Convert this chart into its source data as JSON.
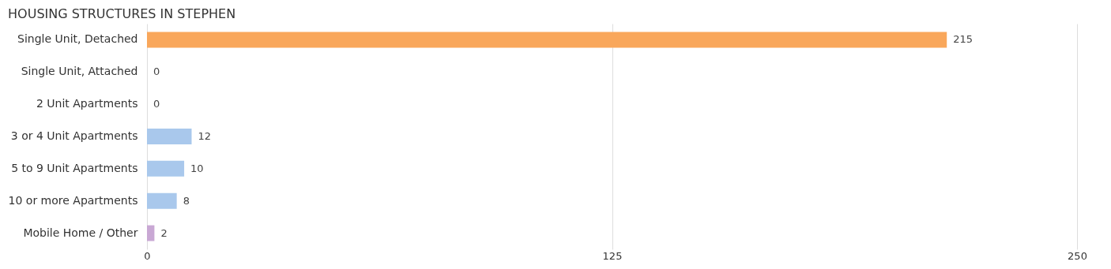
{
  "chart_data": {
    "type": "bar",
    "orientation": "horizontal",
    "title": "HOUSING STRUCTURES IN STEPHEN",
    "categories": [
      "Single Unit, Detached",
      "Single Unit, Attached",
      "2 Unit Apartments",
      "3 or 4 Unit Apartments",
      "5 to 9 Unit Apartments",
      "10 or more Apartments",
      "Mobile Home / Other"
    ],
    "values": [
      215,
      0,
      0,
      12,
      10,
      8,
      2
    ],
    "colors": [
      "#f9a75b",
      "#f0a8a8",
      "#a9c8ec",
      "#a9c8ec",
      "#a9c8ec",
      "#a9c8ec",
      "#c9a8d4"
    ],
    "xlim": [
      0,
      250
    ],
    "xticks": [
      0,
      125,
      250
    ],
    "grid": "x",
    "data_labels": true
  }
}
